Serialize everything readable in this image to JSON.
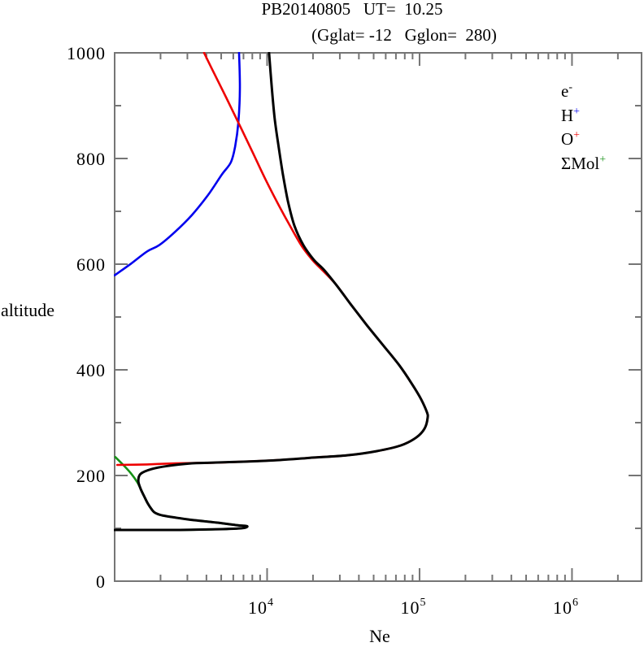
{
  "title": {
    "line1": "PB20140805   UT=  10.25",
    "line2": "(Gglat= -12   Gglon=  280)"
  },
  "axes": {
    "x": {
      "label": "Ne",
      "scale": "log",
      "min": 1000,
      "max": 2860000,
      "major_ticks": [
        {
          "value": 10000,
          "base": "10",
          "exp": "4"
        },
        {
          "value": 100000,
          "base": "10",
          "exp": "5"
        },
        {
          "value": 1000000,
          "base": "10",
          "exp": "6"
        }
      ],
      "minor_ticks": [
        2000,
        3000,
        4000,
        5000,
        6000,
        7000,
        8000,
        9000,
        20000,
        30000,
        40000,
        50000,
        60000,
        70000,
        80000,
        90000,
        200000,
        300000,
        400000,
        500000,
        600000,
        700000,
        800000,
        900000,
        2000000
      ]
    },
    "y": {
      "label": "altitude",
      "scale": "linear",
      "min": 0,
      "max": 1000,
      "major_ticks": [
        {
          "value": 0,
          "label": "0"
        },
        {
          "value": 200,
          "label": "200"
        },
        {
          "value": 400,
          "label": "400"
        },
        {
          "value": 600,
          "label": "600"
        },
        {
          "value": 800,
          "label": "800"
        },
        {
          "value": 1000,
          "label": "1000"
        }
      ],
      "minor_ticks": [
        100,
        300,
        500,
        700,
        900
      ]
    }
  },
  "legend": {
    "items": [
      {
        "name": "electron",
        "base": "e",
        "sup": "-",
        "color": "#000000"
      },
      {
        "name": "hydrogen-ion",
        "base": "H",
        "sup": "+",
        "color": "#0000ee"
      },
      {
        "name": "oxygen-ion",
        "base": "O",
        "sup": "+",
        "color": "#ee0000"
      },
      {
        "name": "molecular-ions",
        "base": "ΣMol",
        "sup": "+",
        "color": "#159015"
      }
    ]
  },
  "colors": {
    "axis": "#757575",
    "text": "#000000",
    "electron": "#000000",
    "h_plus": "#0000ee",
    "o_plus": "#ee0000",
    "mol_plus": "#159015",
    "background": "#ffffff"
  },
  "chart_data": {
    "type": "line",
    "title": "PB20140805 UT= 10.25 (Gglat= -12 Gglon= 280)",
    "xlabel": "Ne",
    "ylabel": "altitude",
    "x_scale": "log",
    "xlim": [
      1000,
      2860000
    ],
    "ylim": [
      0,
      1000
    ],
    "grid": false,
    "legend_position": "upper right",
    "series": [
      {
        "name": "SigmaMol+",
        "color": "#159015",
        "width": 2.6,
        "points": [
          [
            1010,
            235
          ],
          [
            1130,
            221
          ],
          [
            1280,
            204
          ],
          [
            1410,
            187
          ],
          [
            1480,
            175
          ],
          [
            1560,
            161
          ],
          [
            1650,
            147
          ],
          [
            1760,
            135
          ],
          [
            1850,
            129
          ],
          [
            2090,
            124
          ],
          [
            3020,
            117
          ],
          [
            4640,
            111
          ],
          [
            6310,
            106
          ],
          [
            7400,
            104
          ],
          [
            6710,
            100
          ],
          [
            4370,
            98
          ],
          [
            2670,
            97
          ],
          [
            1630,
            97
          ],
          [
            1000,
            97
          ]
        ]
      },
      {
        "name": "H+",
        "color": "#0000ee",
        "width": 2.6,
        "points": [
          [
            6550,
            1000
          ],
          [
            6630,
            931
          ],
          [
            6480,
            869
          ],
          [
            6170,
            823
          ],
          [
            5790,
            793
          ],
          [
            5060,
            770
          ],
          [
            4100,
            731
          ],
          [
            3210,
            693
          ],
          [
            2510,
            662
          ],
          [
            1960,
            636
          ],
          [
            1630,
            624
          ],
          [
            1280,
            601
          ],
          [
            1000,
            579
          ]
        ]
      },
      {
        "name": "O+",
        "color": "#ee0000",
        "width": 2.6,
        "points": [
          [
            3860,
            1000
          ],
          [
            4480,
            962
          ],
          [
            5440,
            913
          ],
          [
            6630,
            862
          ],
          [
            8060,
            811
          ],
          [
            9700,
            762
          ],
          [
            11700,
            716
          ],
          [
            14100,
            673
          ],
          [
            16900,
            634
          ],
          [
            19800,
            608
          ],
          [
            22600,
            591
          ],
          [
            28200,
            562
          ],
          [
            35200,
            525
          ],
          [
            45000,
            485
          ],
          [
            57500,
            447
          ],
          [
            73500,
            409
          ],
          [
            88400,
            375
          ],
          [
            102500,
            344
          ],
          [
            111700,
            320
          ],
          [
            113000,
            309
          ],
          [
            108000,
            289
          ],
          [
            95200,
            272
          ],
          [
            75400,
            257
          ],
          [
            52100,
            246
          ],
          [
            33100,
            238
          ],
          [
            20300,
            234
          ],
          [
            11700,
            229
          ],
          [
            6710,
            226
          ],
          [
            4100,
            224
          ],
          [
            2510,
            223
          ],
          [
            1630,
            221
          ],
          [
            1040,
            220
          ]
        ]
      },
      {
        "name": "e-",
        "color": "#000000",
        "width": 3,
        "points": [
          [
            10300,
            1000
          ],
          [
            10700,
            939
          ],
          [
            11200,
            877
          ],
          [
            11900,
            823
          ],
          [
            12700,
            770
          ],
          [
            13700,
            719
          ],
          [
            15100,
            673
          ],
          [
            17300,
            636
          ],
          [
            20300,
            608
          ],
          [
            23500,
            590
          ],
          [
            28200,
            562
          ],
          [
            35200,
            525
          ],
          [
            45000,
            485
          ],
          [
            57500,
            447
          ],
          [
            73500,
            409
          ],
          [
            88400,
            375
          ],
          [
            102500,
            344
          ],
          [
            111700,
            320
          ],
          [
            113000,
            309
          ],
          [
            108000,
            289
          ],
          [
            95200,
            272
          ],
          [
            75400,
            257
          ],
          [
            52100,
            246
          ],
          [
            33100,
            238
          ],
          [
            20300,
            234
          ],
          [
            11700,
            229
          ],
          [
            6710,
            226
          ],
          [
            4100,
            224
          ],
          [
            3210,
            223
          ],
          [
            2220,
            218
          ],
          [
            1740,
            212
          ],
          [
            1480,
            203
          ],
          [
            1430,
            190
          ],
          [
            1480,
            175
          ],
          [
            1560,
            161
          ],
          [
            1650,
            147
          ],
          [
            1760,
            135
          ],
          [
            1850,
            129
          ],
          [
            2090,
            124
          ],
          [
            3020,
            117
          ],
          [
            4640,
            111
          ],
          [
            6310,
            106
          ],
          [
            7400,
            104
          ],
          [
            6710,
            100
          ],
          [
            4370,
            98
          ],
          [
            2670,
            97
          ],
          [
            1630,
            97
          ],
          [
            1000,
            97
          ]
        ]
      }
    ]
  }
}
